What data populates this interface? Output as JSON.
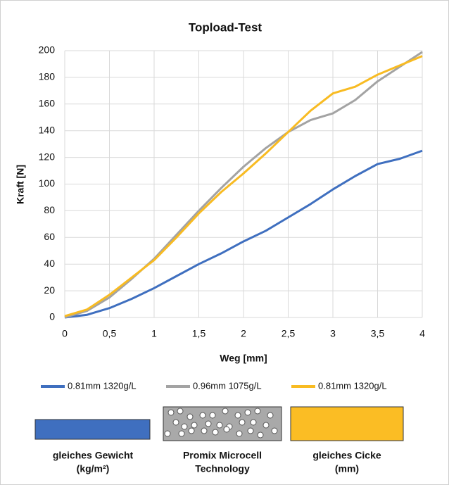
{
  "chart_data": {
    "type": "line",
    "title": "Topload-Test",
    "x_label": "Weg [mm]",
    "y_label": "Kraft [N]",
    "x": [
      0,
      0.25,
      0.5,
      0.75,
      1,
      1.25,
      1.5,
      1.75,
      2,
      2.25,
      2.5,
      2.75,
      3,
      3.25,
      3.5,
      3.75,
      4
    ],
    "series": [
      {
        "name": "0.81mm 1320g/L",
        "color": "#3f6fbf",
        "values": [
          0,
          2,
          7,
          14,
          22,
          31,
          40,
          48,
          57,
          65,
          75,
          85,
          96,
          106,
          115,
          119,
          125
        ]
      },
      {
        "name": "0.96mm 1075g/L",
        "color": "#a3a3a3",
        "values": [
          0,
          5,
          15,
          29,
          44,
          62,
          80,
          97,
          113,
          127,
          139,
          148,
          153,
          163,
          177,
          188,
          199
        ]
      },
      {
        "name": "0.81mm 1320g/L",
        "color": "#f8bb22",
        "values": [
          1,
          6,
          17,
          30,
          43,
          60,
          78,
          94,
          108,
          123,
          139,
          155,
          168,
          173,
          182,
          189,
          196
        ]
      }
    ],
    "xlim": [
      0,
      4
    ],
    "xticks": [
      0,
      {
        "value": 0.5,
        "label": "0,5"
      },
      1,
      {
        "value": 1.5,
        "label": "1,5"
      },
      2,
      {
        "value": 2.5,
        "label": "2,5"
      },
      3,
      {
        "value": 3.5,
        "label": "3,5"
      },
      4
    ],
    "ylim": [
      0,
      200
    ],
    "yticks": [
      0,
      20,
      40,
      60,
      80,
      100,
      120,
      140,
      160,
      180,
      200
    ],
    "grid": true,
    "legend_position": "bottom",
    "panels": [
      {
        "lines": [
          "gleiches Gewicht",
          "(kg/m²)"
        ],
        "color": "#3f6fbf"
      },
      {
        "lines": [
          "Promix Microcell",
          "Technology"
        ],
        "color": "#a9a9a9"
      },
      {
        "lines": [
          "gleiches Cicke",
          "(mm)"
        ],
        "color": "#fbbd24"
      }
    ]
  }
}
